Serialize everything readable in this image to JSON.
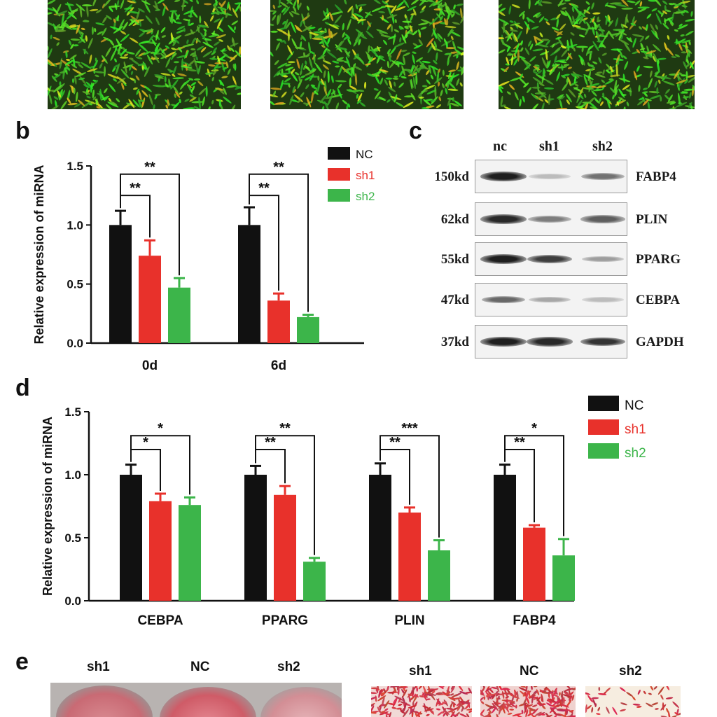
{
  "panels": {
    "b": "b",
    "c": "c",
    "d": "d",
    "e": "e"
  },
  "colors": {
    "NC": "#111111",
    "sh1": "#e8312b",
    "sh2": "#3cb54a"
  },
  "chart_data": [
    {
      "id": "b",
      "type": "bar",
      "categories": [
        "0d",
        "6d"
      ],
      "ylabel": "Relative expression of miRNA",
      "ylim": [
        0,
        1.5
      ],
      "yticks": [
        "0.0",
        "0.5",
        "1.0",
        "1.5"
      ],
      "series": [
        {
          "name": "NC",
          "values": [
            1.0,
            1.0
          ],
          "errors": [
            0.12,
            0.15
          ]
        },
        {
          "name": "sh1",
          "values": [
            0.74,
            0.36
          ],
          "errors": [
            0.13,
            0.06
          ]
        },
        {
          "name": "sh2",
          "values": [
            0.47,
            0.22
          ],
          "errors": [
            0.08,
            0.02
          ]
        }
      ],
      "significance": [
        {
          "category": 0,
          "from": "NC",
          "to": "sh1",
          "label": "**",
          "y": 1.25
        },
        {
          "category": 0,
          "from": "NC",
          "to": "sh2",
          "label": "**",
          "y": 1.43
        },
        {
          "category": 1,
          "from": "NC",
          "to": "sh1",
          "label": "**",
          "y": 1.25
        },
        {
          "category": 1,
          "from": "NC",
          "to": "sh2",
          "label": "**",
          "y": 1.43
        }
      ],
      "legend": [
        "NC",
        "sh1",
        "sh2"
      ],
      "legend_position": "top-right"
    },
    {
      "id": "d",
      "type": "bar",
      "categories": [
        "CEBPA",
        "PPARG",
        "PLIN",
        "FABP4"
      ],
      "ylabel": "Relative expression of miRNA",
      "ylim": [
        0,
        1.5
      ],
      "yticks": [
        "0.0",
        "0.5",
        "1.0",
        "1.5"
      ],
      "series": [
        {
          "name": "NC",
          "values": [
            1.0,
            1.0,
            1.0,
            1.0
          ],
          "errors": [
            0.08,
            0.07,
            0.09,
            0.08
          ]
        },
        {
          "name": "sh1",
          "values": [
            0.79,
            0.84,
            0.7,
            0.58
          ],
          "errors": [
            0.06,
            0.07,
            0.04,
            0.02
          ]
        },
        {
          "name": "sh2",
          "values": [
            0.76,
            0.31,
            0.4,
            0.36
          ],
          "errors": [
            0.06,
            0.03,
            0.08,
            0.13
          ]
        }
      ],
      "significance": [
        {
          "category": 0,
          "from": "NC",
          "to": "sh1",
          "label": "*",
          "y": 1.2
        },
        {
          "category": 0,
          "from": "NC",
          "to": "sh2",
          "label": "*",
          "y": 1.31
        },
        {
          "category": 1,
          "from": "NC",
          "to": "sh1",
          "label": "**",
          "y": 1.2
        },
        {
          "category": 1,
          "from": "NC",
          "to": "sh2",
          "label": "**",
          "y": 1.31
        },
        {
          "category": 2,
          "from": "NC",
          "to": "sh1",
          "label": "**",
          "y": 1.2
        },
        {
          "category": 2,
          "from": "NC",
          "to": "sh2",
          "label": "***",
          "y": 1.31
        },
        {
          "category": 3,
          "from": "NC",
          "to": "sh1",
          "label": "**",
          "y": 1.2
        },
        {
          "category": 3,
          "from": "NC",
          "to": "sh2",
          "label": "*",
          "y": 1.31
        }
      ],
      "legend": [
        "NC",
        "sh1",
        "sh2"
      ],
      "legend_position": "top-right"
    }
  ],
  "western_blot": {
    "lanes": [
      "nc",
      "sh1",
      "sh2"
    ],
    "rows": [
      {
        "kd": "150kd",
        "protein": "FABP4",
        "intensity": [
          0.95,
          0.2,
          0.55
        ]
      },
      {
        "kd": "62kd",
        "protein": "PLIN",
        "intensity": [
          0.9,
          0.5,
          0.65
        ]
      },
      {
        "kd": "55kd",
        "protein": "PPARG",
        "intensity": [
          0.95,
          0.8,
          0.35
        ]
      },
      {
        "kd": "47kd",
        "protein": "CEBPA",
        "intensity": [
          0.6,
          0.3,
          0.2
        ]
      },
      {
        "kd": "37kd",
        "protein": "GAPDH",
        "intensity": [
          0.95,
          0.9,
          0.85
        ]
      }
    ]
  },
  "panel_e": {
    "plate_labels": [
      "sh1",
      "NC",
      "sh2"
    ],
    "micro_labels": [
      "sh1",
      "NC",
      "sh2"
    ]
  }
}
